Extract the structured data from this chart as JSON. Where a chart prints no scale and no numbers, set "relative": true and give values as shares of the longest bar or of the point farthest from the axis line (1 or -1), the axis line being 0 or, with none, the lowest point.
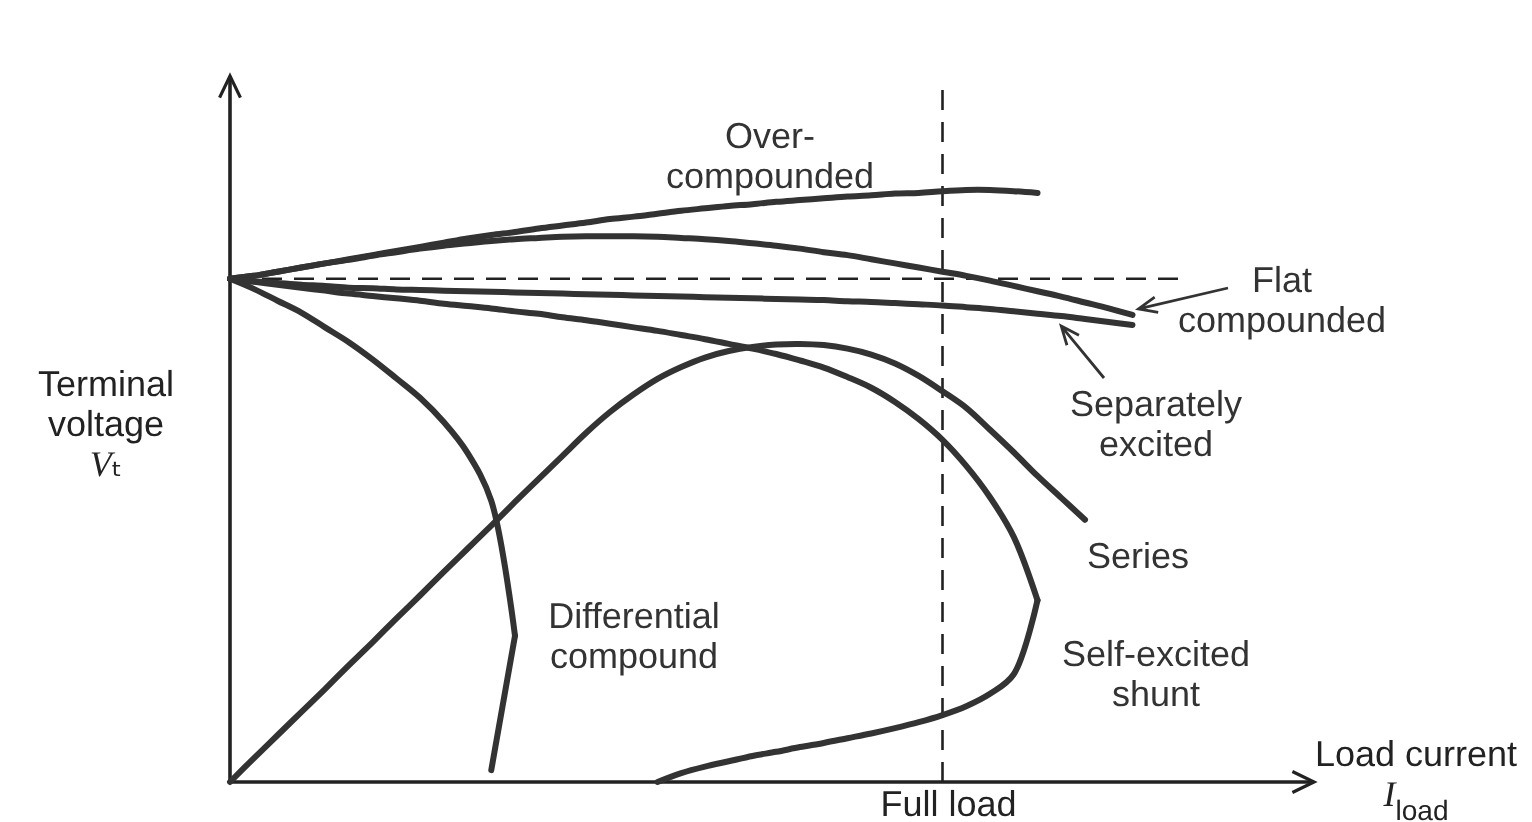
{
  "chart_data": {
    "type": "line",
    "relative": true,
    "xlabel": "Load current I$_{load}$",
    "ylabel": "Terminal voltage Vₜ",
    "annotations": [
      "Full load"
    ],
    "categories": [
      null,
      null,
      null,
      null,
      null,
      null,
      null,
      null,
      null,
      null,
      null,
      null,
      null,
      null,
      null,
      null,
      null,
      null,
      null,
      null,
      null,
      null,
      null,
      null,
      null,
      null,
      null,
      null,
      null,
      null,
      null,
      null,
      null,
      null,
      null,
      null,
      null,
      null,
      null,
      null,
      null
    ],
    "series": [
      {
        "name": "Over-compounded",
        "color": "#333333",
        "values": [
          0.85,
          0.855,
          0.862,
          0.869,
          0.876,
          0.883,
          0.89,
          0.897,
          0.904,
          0.911,
          0.918,
          0.924,
          0.929,
          0.935,
          0.94,
          0.945,
          0.951,
          0.955,
          0.96,
          0.965,
          0.969,
          0.973,
          0.976,
          0.98,
          0.983,
          0.986,
          0.989,
          0.991,
          0.994,
          0.995,
          0.998,
          1,
          1,
          0.998,
          0.995,
          null,
          null,
          null,
          null,
          null,
          null
        ]
      },
      {
        "name": "Flat compounded",
        "color": "#333333",
        "values": [
          0.85,
          0.855,
          0.862,
          0.869,
          0.876,
          0.882,
          0.889,
          0.895,
          0.901,
          0.906,
          0.91,
          0.914,
          0.917,
          0.919,
          0.921,
          0.922,
          0.922,
          0.922,
          0.921,
          0.919,
          0.917,
          0.914,
          0.91,
          0.906,
          0.901,
          0.895,
          0.89,
          0.883,
          0.876,
          0.869,
          0.862,
          0.855,
          0.847,
          0.838,
          0.829,
          0.82,
          0.81,
          0.8,
          0.789,
          null,
          null
        ]
      },
      {
        "name": "Separately excited",
        "color": "#333333",
        "values": [
          0.85,
          0.846,
          0.843,
          0.84,
          0.838,
          0.835,
          0.834,
          0.832,
          0.831,
          0.83,
          0.829,
          0.828,
          0.827,
          0.826,
          0.825,
          0.824,
          0.823,
          0.822,
          0.821,
          0.82,
          0.819,
          0.818,
          0.817,
          0.816,
          0.815,
          0.814,
          0.812,
          0.811,
          0.809,
          0.807,
          0.805,
          0.802,
          0.799,
          0.795,
          0.791,
          0.787,
          0.782,
          0.777,
          0.772,
          null,
          null
        ]
      },
      {
        "name": "Series",
        "color": "#333333",
        "values": [
          0,
          0.04,
          0.079,
          0.118,
          0.157,
          0.197,
          0.236,
          0.276,
          0.315,
          0.355,
          0.394,
          0.433,
          0.473,
          0.512,
          0.551,
          0.59,
          0.625,
          0.655,
          0.681,
          0.701,
          0.717,
          0.728,
          0.735,
          0.739,
          0.74,
          0.738,
          0.732,
          0.722,
          0.707,
          0.686,
          0.66,
          0.632,
          0.595,
          0.557,
          0.517,
          0.48,
          0.443,
          null,
          null,
          null,
          null
        ]
      },
      {
        "name": "Self-excited shunt",
        "color": "#333333",
        "values": [
          0.85,
          0.845,
          0.84,
          0.835,
          0.83,
          0.825,
          0.821,
          0.817,
          0.813,
          0.808,
          0.804,
          0.8,
          0.795,
          0.791,
          0.785,
          0.78,
          0.774,
          0.768,
          0.762,
          0.755,
          0.748,
          0.74,
          0.732,
          0.723,
          0.712,
          0.7,
          0.684,
          0.666,
          0.642,
          0.613,
          0.578,
          0.534,
          0.481,
          0.414,
          0.307,
          null,
          null,
          null,
          null,
          null,
          null
        ]
      },
      {
        "name": "Differential compound",
        "color": "#333333",
        "values": [
          0.85,
          0.833,
          0.813,
          0.793,
          0.768,
          0.743,
          0.714,
          0.682,
          0.649,
          0.608,
          0.556,
          0.475,
          0.247,
          null,
          null,
          null,
          null,
          null,
          null,
          null,
          null,
          null,
          null,
          null,
          null,
          null,
          null,
          null,
          null,
          null,
          null,
          null,
          null,
          null,
          null,
          null,
          null,
          null,
          null,
          null,
          null
        ]
      },
      {
        "color": "#333333",
        "values": [
          null,
          null,
          null,
          null,
          null,
          null,
          null,
          null,
          null,
          null,
          null,
          null,
          null,
          null,
          null,
          null,
          null,
          null,
          0,
          0.015,
          0.026,
          0.035,
          0.044,
          0.051,
          0.059,
          0.066,
          0.074,
          0.082,
          0.091,
          0.101,
          0.113,
          0.128,
          0.149,
          0.182,
          0.307,
          null,
          null,
          null,
          null,
          null,
          null
        ]
      },
      {
        "color": "#333333",
        "values": [
          null,
          null,
          null,
          null,
          null,
          null,
          null,
          null,
          null,
          null,
          null,
          0.02,
          0.247,
          null,
          null,
          null,
          null,
          null,
          null,
          null,
          null,
          null,
          null,
          null,
          null,
          null,
          null,
          null,
          null,
          null,
          null,
          null,
          null,
          null,
          null,
          null,
          null,
          null,
          null,
          null,
          null
        ]
      }
    ],
    "ref_lines": [
      {
        "axis": "y",
        "value": 0.85,
        "line_style": "dashed",
        "color": "#222222"
      }
    ]
  }
}
